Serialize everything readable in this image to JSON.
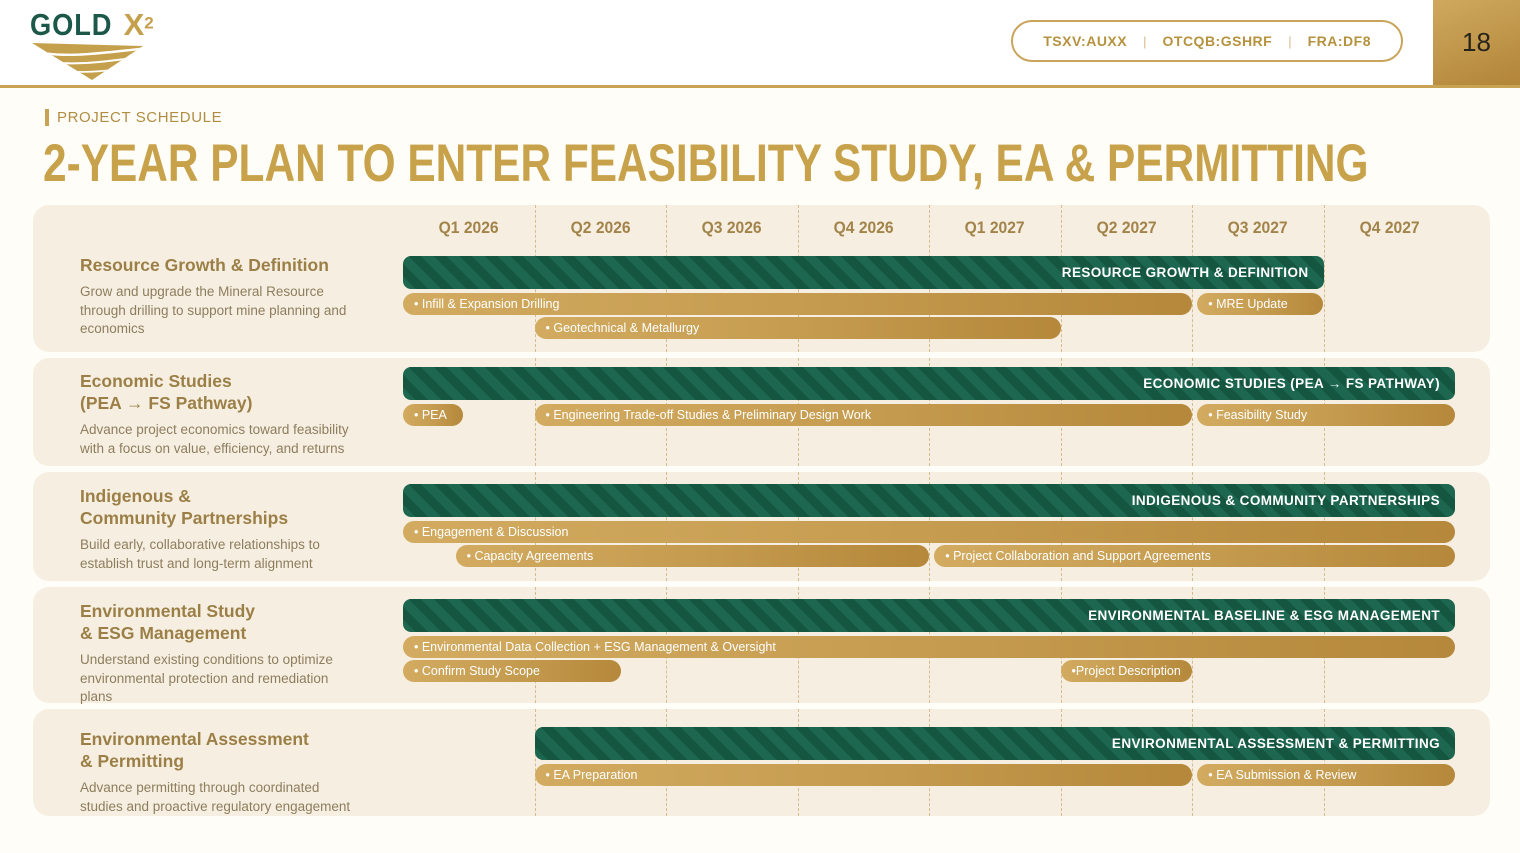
{
  "header": {
    "logo_green": "GOLD",
    "logo_gold": "X",
    "logo_exponent": "2",
    "tickers": [
      "TSXV:AUXX",
      "OTCQB:GSHRF",
      "FRA:DF8"
    ],
    "ticker_separator": "|",
    "page_number": "18"
  },
  "title_block": {
    "eyebrow": "PROJECT SCHEDULE"
  },
  "chart_data": {
    "type": "gantt",
    "title": "2-YEAR PLAN TO ENTER FEASIBILITY STUDY, EA & PERMITTING",
    "unit": "quarter",
    "quarters": [
      "Q1 2026",
      "Q2 2026",
      "Q3 2026",
      "Q4 2026",
      "Q1 2027",
      "Q2 2027",
      "Q3 2027",
      "Q4 2027"
    ],
    "rows": [
      {
        "title_lines": [
          "Resource Growth & Definition"
        ],
        "description": "Grow and upgrade the Mineral Resource through drilling to support mine planning and economics",
        "phase": {
          "label": "RESOURCE GROWTH & DEFINITION",
          "start": 0,
          "end": 7
        },
        "tasks": [
          {
            "label": "• Infill & Expansion Drilling",
            "start": 0,
            "end": 6,
            "lane": 0
          },
          {
            "label": "• MRE Update",
            "start": 6.04,
            "end": 7,
            "lane": 0
          },
          {
            "label": "• Geotechnical & Metallurgy",
            "start": 1,
            "end": 5,
            "lane": 1
          }
        ]
      },
      {
        "title_lines": [
          "Economic Studies",
          "(PEA → FS Pathway)"
        ],
        "description": "Advance project economics toward feasibility with a focus on value, efficiency, and returns",
        "phase": {
          "label": "ECONOMIC STUDIES (PEA → FS PATHWAY)",
          "start": 0,
          "end": 8
        },
        "tasks": [
          {
            "label": "• PEA",
            "start": 0,
            "end": 0.46,
            "lane": 0
          },
          {
            "label": "• Engineering Trade-off Studies & Preliminary Design Work",
            "start": 1,
            "end": 6,
            "lane": 0
          },
          {
            "label": "• Feasibility Study",
            "start": 6.04,
            "end": 8,
            "lane": 0
          }
        ]
      },
      {
        "title_lines": [
          "Indigenous &",
          "Community Partnerships"
        ],
        "description": "Build early, collaborative relationships to establish trust and long-term alignment",
        "phase": {
          "label": "INDIGENOUS & COMMUNITY PARTNERSHIPS",
          "start": 0,
          "end": 8
        },
        "tasks": [
          {
            "label": "• Engagement & Discussion",
            "start": 0,
            "end": 8,
            "lane": 0
          },
          {
            "label": "• Capacity Agreements",
            "start": 0.4,
            "end": 4,
            "lane": 1
          },
          {
            "label": "• Project Collaboration and Support Agreements",
            "start": 4.04,
            "end": 8,
            "lane": 1
          }
        ]
      },
      {
        "title_lines": [
          "Environmental Study",
          "& ESG Management"
        ],
        "description": "Understand existing conditions to optimize environmental protection and remediation plans",
        "phase": {
          "label": "ENVIRONMENTAL BASELINE & ESG MANAGEMENT",
          "start": 0,
          "end": 8
        },
        "tasks": [
          {
            "label": "• Environmental Data Collection + ESG Management & Oversight",
            "start": 0,
            "end": 8,
            "lane": 0
          },
          {
            "label": "• Confirm Study Scope",
            "start": 0,
            "end": 1.66,
            "lane": 1
          },
          {
            "label": "•Project Description",
            "start": 5,
            "end": 6,
            "lane": 1
          }
        ]
      },
      {
        "title_lines": [
          "Environmental Assessment",
          "& Permitting"
        ],
        "description": "Advance permitting through coordinated studies and proactive regulatory engagement",
        "phase": {
          "label": "ENVIRONMENTAL ASSESSMENT & PERMITTING",
          "start": 1,
          "end": 8
        },
        "tasks": [
          {
            "label": "• EA Preparation",
            "start": 1,
            "end": 6,
            "lane": 0
          },
          {
            "label": "• EA Submission & Review",
            "start": 6.04,
            "end": 8,
            "lane": 0
          }
        ]
      }
    ]
  },
  "colors": {
    "accent_gold": "#c8a24a",
    "bar_gold_light": "#d2ab60",
    "bar_gold_dark": "#b5883b",
    "phase_green_dark": "#14563f",
    "phase_green_light": "#1d6750",
    "card_background": "#f6efe1",
    "header_rule": "#c8a353",
    "logo_green": "#1b584a"
  }
}
